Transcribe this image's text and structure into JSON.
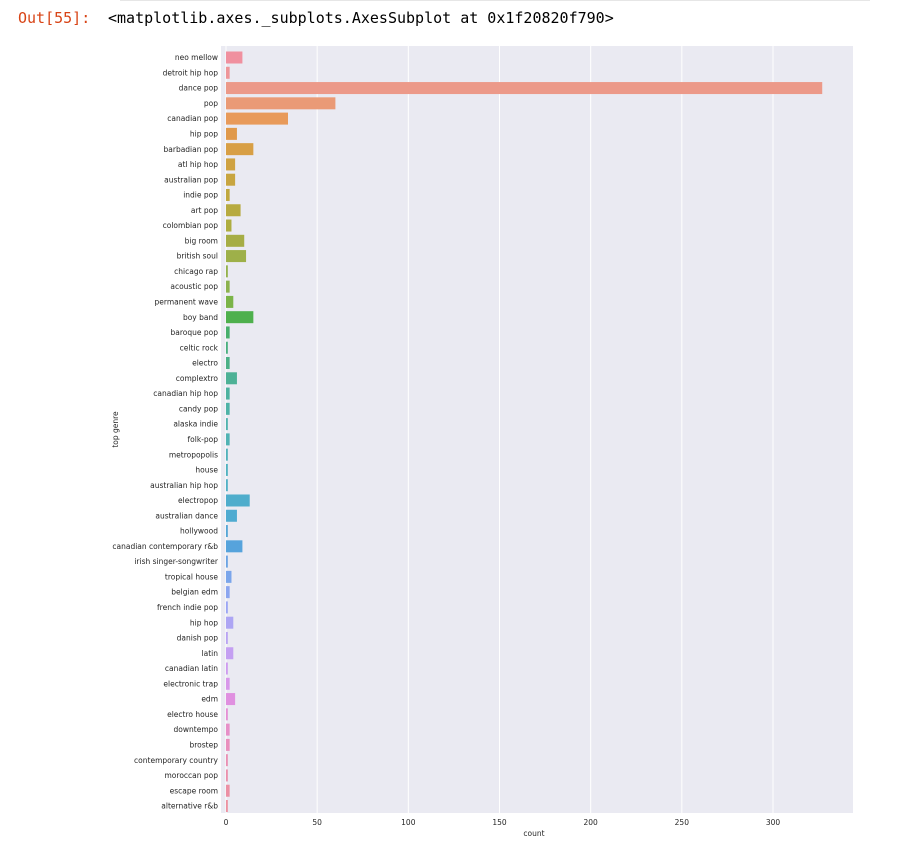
{
  "cell": {
    "prompt": "Out[55]:",
    "output_text": "<matplotlib.axes._subplots.AxesSubplot at 0x1f20820f790>"
  },
  "chart_data": {
    "type": "bar",
    "orientation": "horizontal",
    "title": "",
    "xlabel": "count",
    "ylabel": "top genre",
    "xlim": [
      0,
      345
    ],
    "xticks": [
      0,
      50,
      100,
      150,
      200,
      250,
      300
    ],
    "grid": true,
    "background": "#eaeaf2",
    "categories": [
      "neo mellow",
      "detroit hip hop",
      "dance pop",
      "pop",
      "canadian pop",
      "hip pop",
      "barbadian pop",
      "atl hip hop",
      "australian pop",
      "indie pop",
      "art pop",
      "colombian pop",
      "big room",
      "british soul",
      "chicago rap",
      "acoustic pop",
      "permanent wave",
      "boy band",
      "baroque pop",
      "celtic rock",
      "electro",
      "complextro",
      "canadian hip hop",
      "candy pop",
      "alaska indie",
      "folk-pop",
      "metropopolis",
      "house",
      "australian hip hop",
      "electropop",
      "australian dance",
      "hollywood",
      "canadian contemporary r&b",
      "irish singer-songwriter",
      "tropical house",
      "belgian edm",
      "french indie pop",
      "hip hop",
      "danish pop",
      "latin",
      "canadian latin",
      "electronic trap",
      "edm",
      "electro house",
      "downtempo",
      "brostep",
      "contemporary country",
      "moroccan pop",
      "escape room",
      "alternative r&b"
    ],
    "values": [
      9,
      2,
      327,
      60,
      34,
      6,
      15,
      5,
      5,
      2,
      8,
      3,
      10,
      11,
      1,
      2,
      4,
      15,
      2,
      1,
      2,
      6,
      2,
      2,
      1,
      2,
      1,
      1,
      1,
      13,
      6,
      1,
      9,
      1,
      3,
      2,
      1,
      4,
      1,
      4,
      1,
      2,
      5,
      1,
      2,
      2,
      1,
      1,
      2,
      1
    ],
    "colors": [
      "#f0909f",
      "#ee9599",
      "#ec9989",
      "#ea9a76",
      "#e89a5a",
      "#e0994b",
      "#d89f45",
      "#cfa242",
      "#c8a540",
      "#c0a840",
      "#b7aa40",
      "#aead40",
      "#a6ad45",
      "#9eb049",
      "#94b24c",
      "#8cb24e",
      "#7bb448",
      "#4eb04d",
      "#48b06d",
      "#49b07f",
      "#4bb087",
      "#4db196",
      "#4db2a0",
      "#4eb3a7",
      "#4fb3ae",
      "#50b3b4",
      "#50b2bb",
      "#50b2c0",
      "#51b1c6",
      "#4fadcc",
      "#4fabd1",
      "#55a6d6",
      "#56a3dc",
      "#6ba3e4",
      "#7aa5eb",
      "#8ba5f0",
      "#9ba5f5",
      "#ada5f4",
      "#b9a3f3",
      "#c49ff2",
      "#ce9bf0",
      "#d897ea",
      "#e090e0",
      "#e58fd5",
      "#e78fc8",
      "#e98fbd",
      "#ea8fb3",
      "#eb8fac",
      "#ec90a4",
      "#ed91a0"
    ]
  }
}
